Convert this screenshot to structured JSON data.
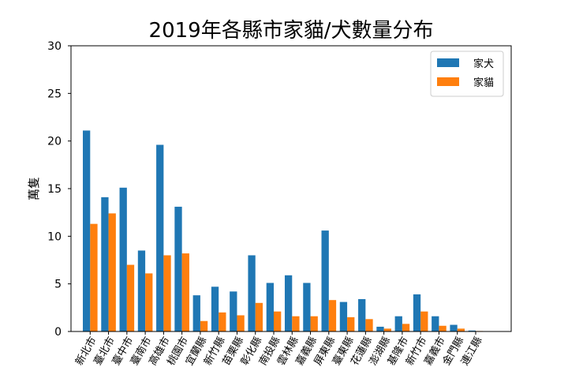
{
  "chart_data": {
    "type": "bar",
    "title": "2019年各縣市家貓/犬數量分布",
    "xlabel": "",
    "ylabel": "萬隻",
    "ylim": [
      0,
      30
    ],
    "yticks": [
      0,
      5,
      10,
      15,
      20,
      25,
      30
    ],
    "grid": false,
    "legend_position": "top-right",
    "categories": [
      "新北市",
      "臺北市",
      "臺中市",
      "臺南市",
      "高雄市",
      "桃園市",
      "宜蘭縣",
      "新竹縣",
      "苗栗縣",
      "彰化縣",
      "南投縣",
      "雲林縣",
      "嘉義縣",
      "屏東縣",
      "臺東縣",
      "花蓮縣",
      "澎湖縣",
      "基隆市",
      "新竹市",
      "嘉義市",
      "金門縣",
      "連江縣"
    ],
    "series": [
      {
        "name": "家犬",
        "color": "#1f77b4",
        "values": [
          21.1,
          14.1,
          15.1,
          8.5,
          19.6,
          13.1,
          3.8,
          4.7,
          4.2,
          8.0,
          5.1,
          5.9,
          5.1,
          10.6,
          3.1,
          3.4,
          0.5,
          1.6,
          3.9,
          1.6,
          0.7,
          0.1
        ]
      },
      {
        "name": "家貓",
        "color": "#ff7f0e",
        "values": [
          11.3,
          12.4,
          7.0,
          6.1,
          8.0,
          8.2,
          1.1,
          2.0,
          1.7,
          3.0,
          2.1,
          1.6,
          1.6,
          3.3,
          1.5,
          1.3,
          0.3,
          0.8,
          2.1,
          0.6,
          0.3,
          0.05
        ]
      }
    ]
  }
}
